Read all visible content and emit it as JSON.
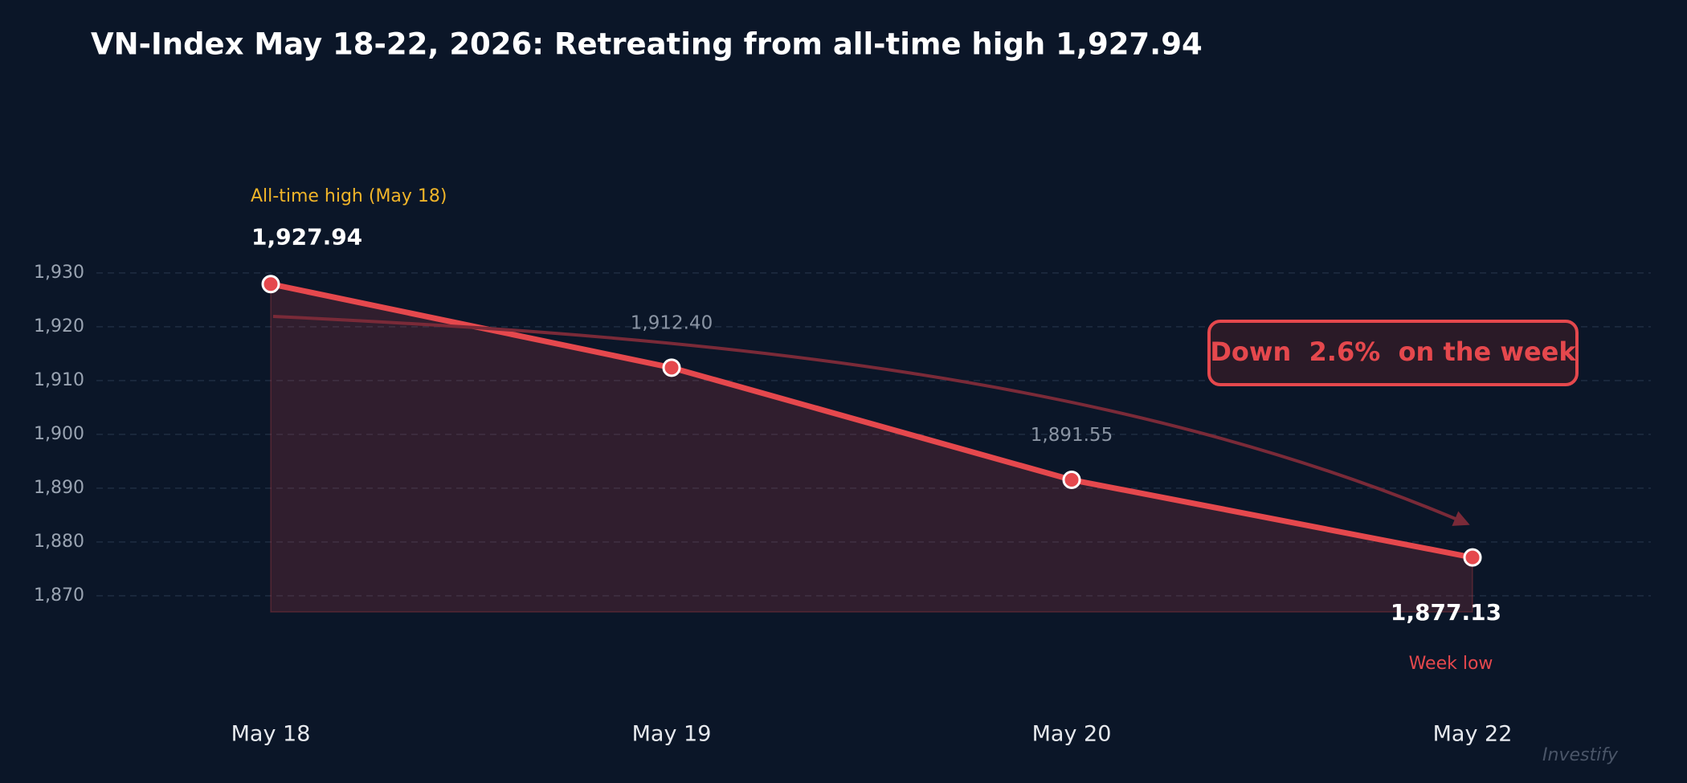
{
  "chart_data": {
    "type": "line",
    "title": "VN-Index May 18-22, 2026: Retreating from all-time high 1,927.94",
    "categories": [
      "May 18",
      "May 19",
      "May 20",
      "May 22"
    ],
    "values": [
      1927.94,
      1912.4,
      1891.55,
      1877.13
    ],
    "value_labels": [
      "1,927.94",
      "1,912.40",
      "1,891.55",
      "1,877.13"
    ],
    "color": "#e5484d",
    "ylim": [
      1867,
      1937
    ],
    "yticks": [
      {
        "value": 1870,
        "label": "1,870"
      },
      {
        "value": 1880,
        "label": "1,880"
      },
      {
        "value": 1890,
        "label": "1,890"
      },
      {
        "value": 1900,
        "label": "1,900"
      },
      {
        "value": 1910,
        "label": "1,910"
      },
      {
        "value": 1920,
        "label": "1,920"
      },
      {
        "value": 1930,
        "label": "1,930"
      }
    ],
    "grid": true,
    "annotations": {
      "high": "All-time high (May 18)",
      "low": "Week low",
      "change": "Down  2.6%  on the week",
      "watermark": "Investify"
    }
  }
}
